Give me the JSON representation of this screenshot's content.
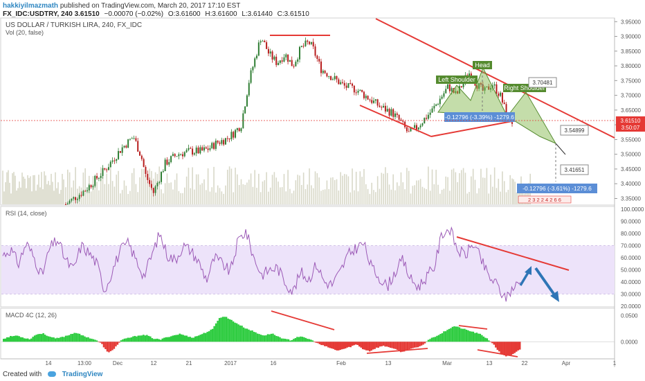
{
  "header": {
    "publisher": "hakkiyilmazmath",
    "published_text": "published on TradingView.com, March 20, 2017 17:10 EST",
    "symbol": "FX_IDC:USDTRY, 240",
    "last": "3.61510",
    "change": "−0.00070 (−0.02%)",
    "open": "O:3.61600",
    "high": "H:3.61600",
    "low": "L:3.61440",
    "close": "C:3.61510"
  },
  "footer": {
    "created_with": "Created with",
    "brand": "TradingView"
  },
  "colors": {
    "up": "#2e7d32",
    "down": "#b71c1c",
    "trend": "#e53935",
    "pattern_fill": "#7cb342",
    "rsi_band": "#ede3fa",
    "rsi_line": "#9b59b6",
    "macd_up": "#2ecc40",
    "macd_down": "#e53935",
    "price_marker": "#e53935"
  },
  "chart_data": [
    {
      "type": "candlestick",
      "title": "US DOLLAR / TURKISH LIRA, 240, FX_IDC",
      "volume_label": "Vol (20, false)",
      "x_ticks": [
        "14",
        "13:00",
        "Dec",
        "12",
        "21",
        "2017",
        "16",
        "Feb",
        "13",
        "Mar",
        "13",
        "22",
        "Apr",
        "1"
      ],
      "y_ticks": [
        "3.95000",
        "3.90000",
        "3.85000",
        "3.80000",
        "3.75000",
        "3.70000",
        "3.65000",
        "3.60000",
        "3.55000",
        "3.50000",
        "3.45000",
        "3.40000",
        "3.35000"
      ],
      "ylim": [
        3.33,
        3.96
      ],
      "price_path": [
        [
          0,
          3.33
        ],
        [
          5,
          3.38
        ],
        [
          10,
          3.45
        ],
        [
          14,
          3.52
        ],
        [
          17,
          3.56
        ],
        [
          19,
          3.49
        ],
        [
          20,
          3.43
        ],
        [
          22,
          3.37
        ],
        [
          25,
          3.47
        ],
        [
          28,
          3.5
        ],
        [
          31,
          3.51
        ],
        [
          34,
          3.51
        ],
        [
          36,
          3.52
        ],
        [
          38,
          3.54
        ],
        [
          40,
          3.55
        ],
        [
          42,
          3.57
        ],
        [
          44,
          3.6
        ],
        [
          46,
          3.75
        ],
        [
          48,
          3.85
        ],
        [
          49,
          3.9
        ],
        [
          51,
          3.84
        ],
        [
          53,
          3.81
        ],
        [
          55,
          3.84
        ],
        [
          57,
          3.8
        ],
        [
          59,
          3.86
        ],
        [
          61,
          3.88
        ],
        [
          62,
          3.86
        ],
        [
          64,
          3.79
        ],
        [
          67,
          3.76
        ],
        [
          70,
          3.73
        ],
        [
          73,
          3.72
        ],
        [
          76,
          3.69
        ],
        [
          79,
          3.66
        ],
        [
          82,
          3.64
        ],
        [
          84,
          3.61
        ],
        [
          86,
          3.57
        ],
        [
          88,
          3.59
        ],
        [
          90,
          3.62
        ],
        [
          92,
          3.65
        ],
        [
          94,
          3.69
        ],
        [
          96,
          3.73
        ],
        [
          98,
          3.7
        ],
        [
          100,
          3.75
        ],
        [
          101,
          3.78
        ],
        [
          103,
          3.74
        ],
        [
          105,
          3.71
        ],
        [
          107,
          3.74
        ],
        [
          109,
          3.7
        ],
        [
          111,
          3.62
        ],
        [
          112,
          3.61
        ]
      ],
      "last_price": "3.61510",
      "countdown": "3:50:07",
      "annotations": {
        "head": "Head",
        "left_shoulder": "Left Shoulder",
        "right_shoulder": "Right Shoulder",
        "target_1": "3.70481",
        "target_2": "3.54899",
        "target_3": "3.41651",
        "measure_1": "-0.12796 (-3.39%) -1279.6",
        "measure_2": "-0.12796 (-3.61%) -1279.6",
        "counts": "2 3 2 2 4 2 6 6"
      }
    },
    {
      "type": "line",
      "title": "RSI (14, close)",
      "y_ticks": [
        "100.0000",
        "90.0000",
        "80.0000",
        "70.0000",
        "60.0000",
        "50.0000",
        "40.0000",
        "30.0000",
        "20.0000"
      ],
      "ylim": [
        20,
        100
      ],
      "band": [
        30,
        70
      ],
      "series": [
        {
          "values": [
            62,
            67,
            55,
            72,
            60,
            45,
            68,
            75,
            58,
            50,
            70,
            64,
            55,
            33,
            50,
            66,
            72,
            58,
            45,
            62,
            80,
            62,
            58,
            70,
            66,
            56,
            42,
            60,
            55,
            48,
            74,
            82,
            60,
            46,
            50,
            52,
            40,
            32,
            48,
            42,
            55,
            40,
            38,
            48,
            62,
            68,
            72,
            52,
            44,
            36,
            48,
            58,
            42,
            36,
            44,
            52,
            80,
            84,
            66,
            62,
            72,
            58,
            44,
            38,
            26,
            35,
            40
          ]
        }
      ]
    },
    {
      "type": "bar",
      "title": "MACD 4C (12, 26)",
      "y_ticks": [
        "0.0500",
        "0.0000"
      ],
      "ylim": [
        -0.03,
        0.06
      ],
      "series": [
        {
          "values": [
            0.006,
            0.01,
            0.012,
            0.008,
            0.005,
            0.014,
            0.016,
            0.01,
            0.006,
            0.009,
            0.013,
            0.018,
            0.012,
            0.008,
            0.004,
            -0.004,
            -0.022,
            -0.012,
            0.003,
            0.007,
            0.01,
            0.013,
            0.012,
            0.006,
            0.004,
            0.009,
            0.012,
            0.015,
            0.011,
            0.008,
            0.013,
            0.018,
            0.024,
            0.046,
            0.048,
            0.04,
            0.033,
            0.026,
            0.021,
            0.015,
            0.012,
            0.016,
            0.01,
            0.005,
            0.003,
            0.01,
            0.008,
            0.004,
            -0.003,
            -0.008,
            -0.012,
            -0.017,
            -0.014,
            -0.01,
            -0.005,
            -0.014,
            -0.018,
            -0.012,
            -0.008,
            -0.01,
            -0.015,
            -0.02,
            -0.014,
            -0.012,
            -0.008,
            0.004,
            0.01,
            0.016,
            0.024,
            0.03,
            0.026,
            0.022,
            0.018,
            0.014,
            0.006,
            -0.006,
            -0.022,
            -0.028,
            -0.024,
            -0.015
          ]
        }
      ]
    }
  ]
}
